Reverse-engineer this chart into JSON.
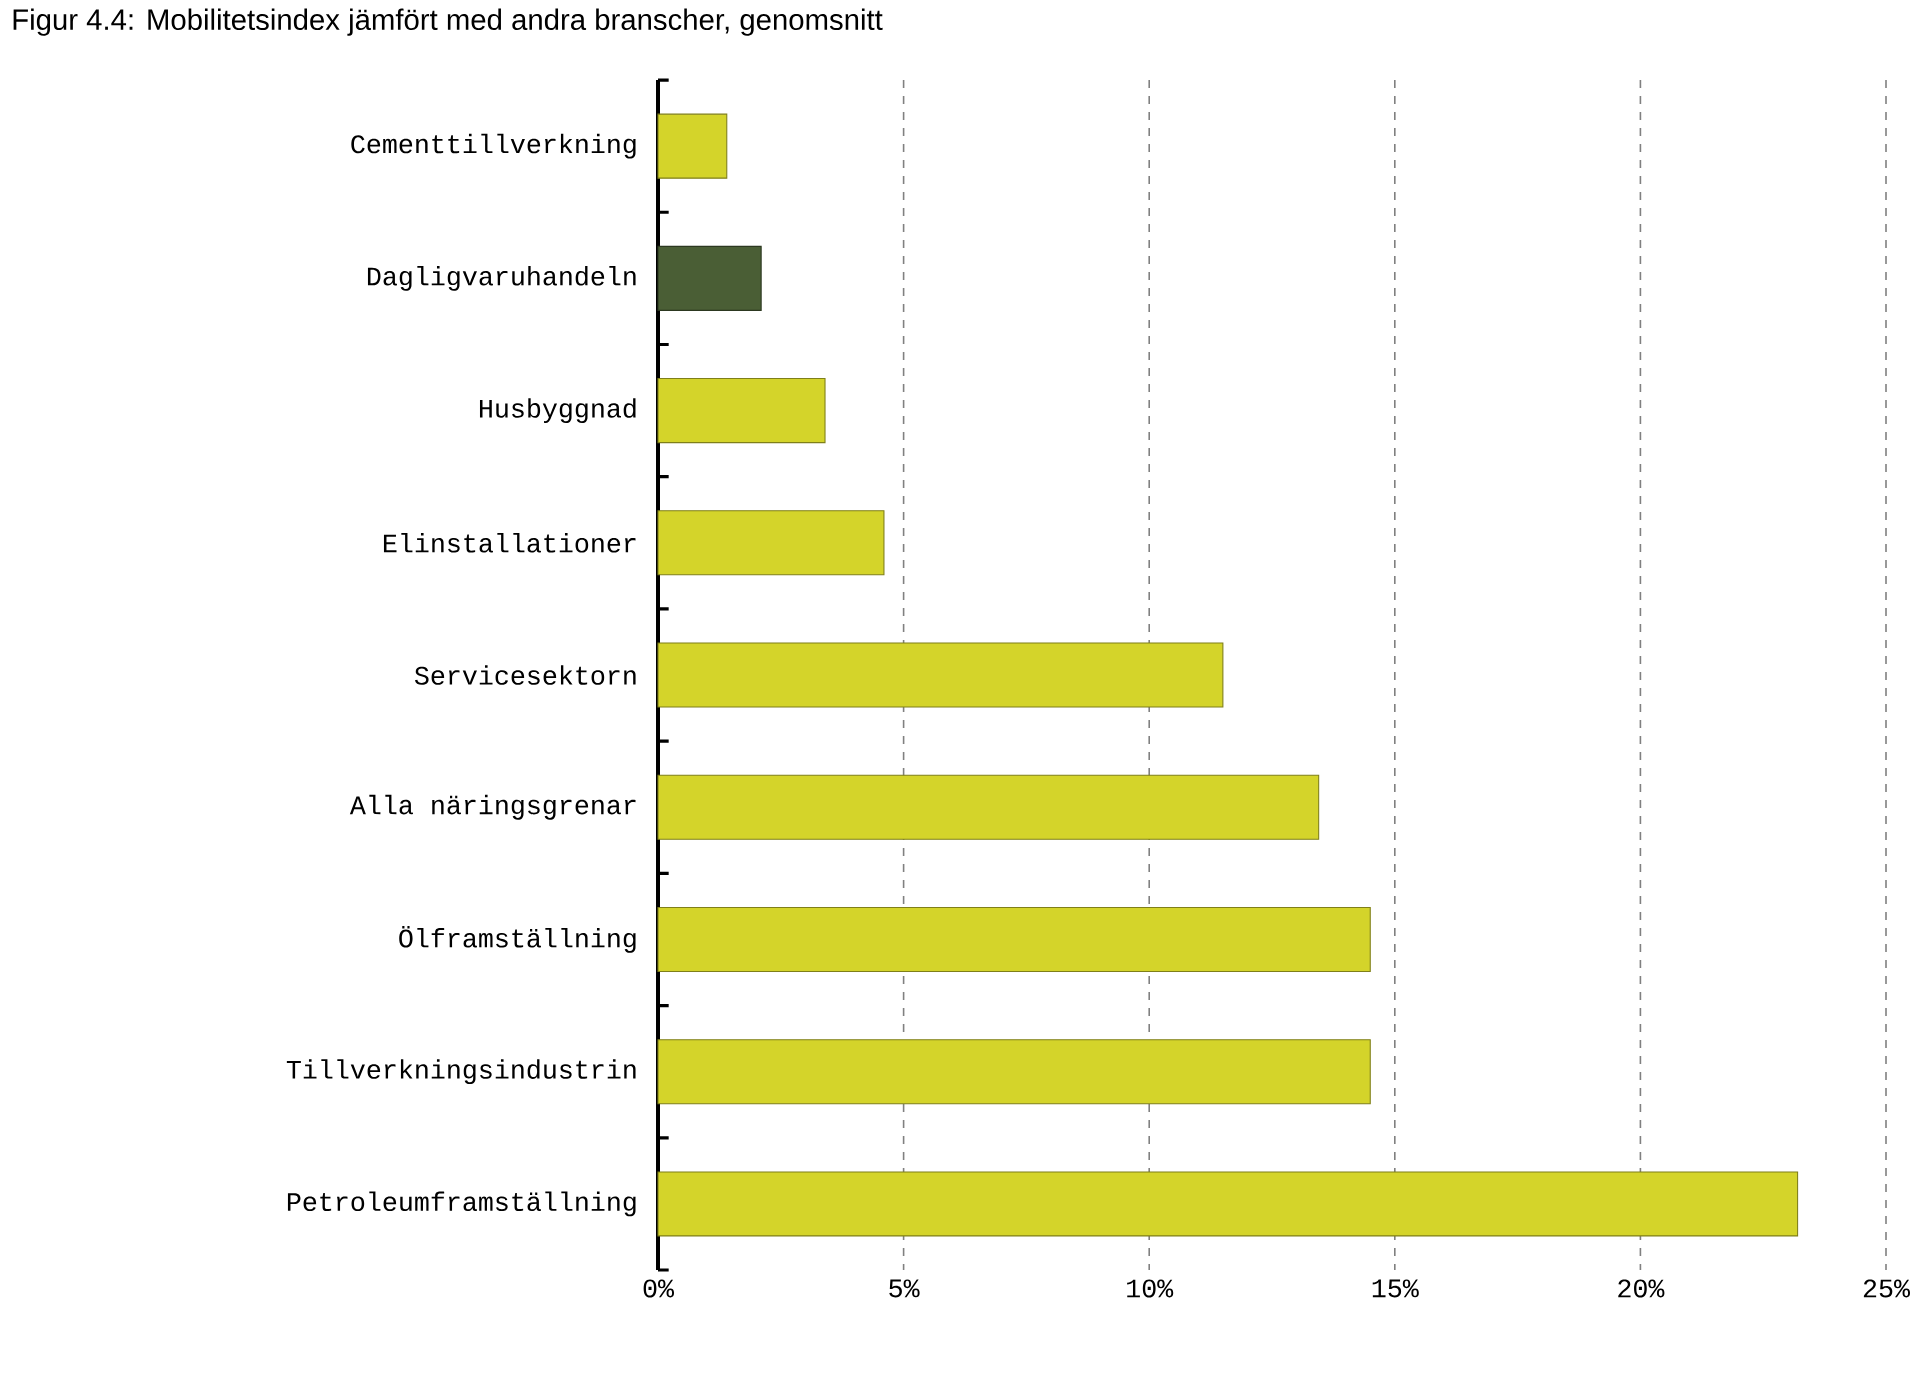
{
  "chart_data": {
    "type": "bar",
    "orientation": "horizontal",
    "title": "Figur 4.4: Mobilitetsindex jämfört med andra branscher, genomsnitt",
    "categories": [
      "Cementtillverkning",
      "Dagligvaruhandeln",
      "Husbyggnad",
      "Elinstallationer",
      "Servicesektorn",
      "Alla näringsgrenar",
      "Ölframställning",
      "Tillverkningsindustrin",
      "Petroleumframställning"
    ],
    "values": [
      1.4,
      2.1,
      3.4,
      4.6,
      11.5,
      13.45,
      14.5,
      14.5,
      23.2
    ],
    "colors": [
      "#d4d42a",
      "#4a5e35",
      "#d4d42a",
      "#d4d42a",
      "#d4d42a",
      "#d4d42a",
      "#d4d42a",
      "#d4d42a",
      "#d4d42a"
    ],
    "xlim": [
      0,
      25
    ],
    "xticks": [
      {
        "value": 0,
        "label": "0%"
      },
      {
        "value": 5,
        "label": "5%"
      },
      {
        "value": 10,
        "label": "10%"
      },
      {
        "value": 15,
        "label": "15%"
      },
      {
        "value": 20,
        "label": "20%"
      },
      {
        "value": 25,
        "label": "25%"
      }
    ],
    "grid": "x"
  }
}
